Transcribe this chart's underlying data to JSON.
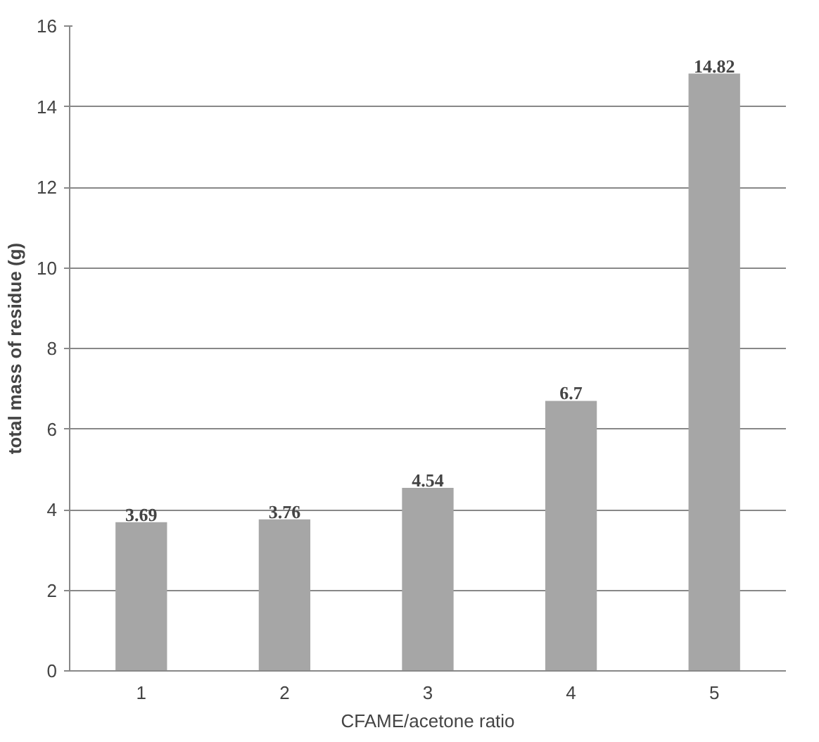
{
  "chart_data": {
    "type": "bar",
    "xlabel": "CFAME/acetone ratio",
    "ylabel": "total mass of residue (g)",
    "categories": [
      "1",
      "2",
      "3",
      "4",
      "5"
    ],
    "values": [
      3.69,
      3.76,
      4.54,
      6.7,
      14.82
    ],
    "color": "#a6a6a6",
    "ylim": [
      0,
      16
    ],
    "yticks": [
      0,
      2,
      4,
      6,
      8,
      10,
      12,
      14,
      16
    ],
    "grid": "y",
    "data_labels": true
  }
}
